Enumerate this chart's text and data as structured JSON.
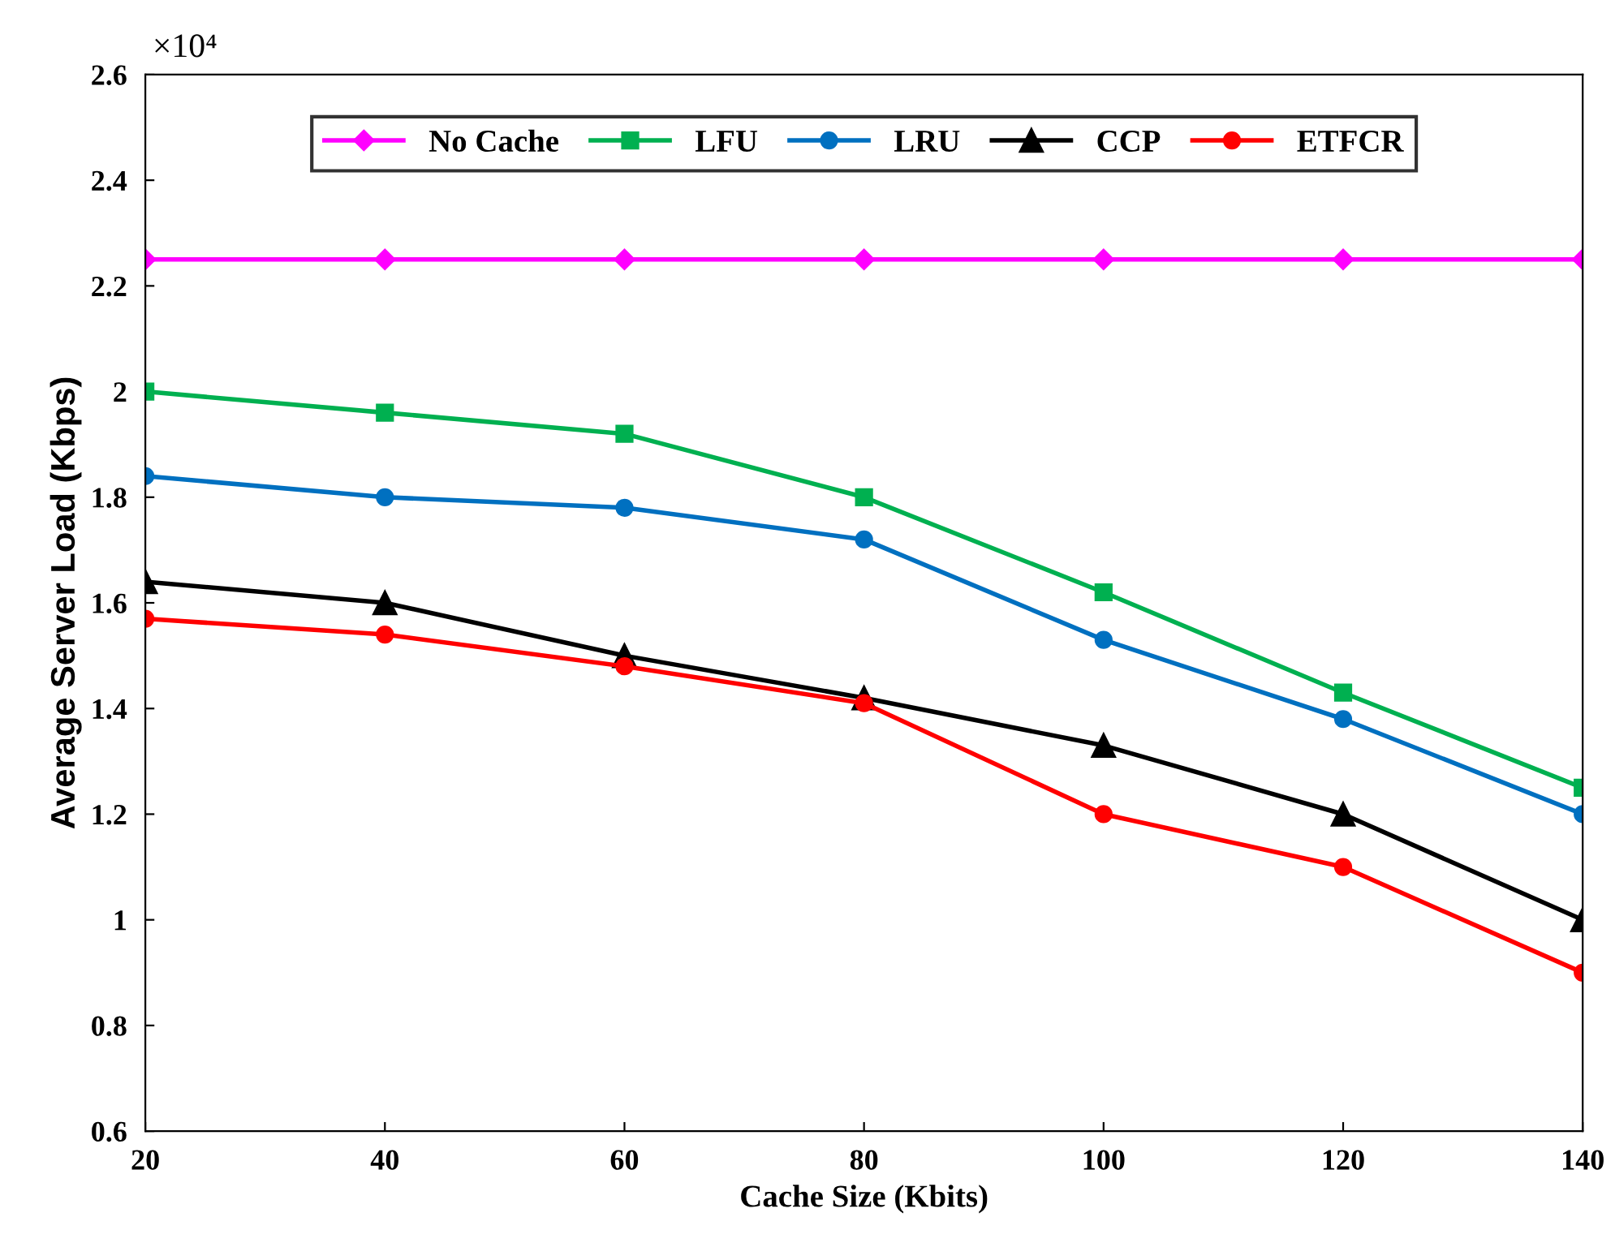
{
  "chart_data": {
    "type": "line",
    "xlabel": "Cache Size (Kbits)",
    "ylabel": "Average Server Load (Kbps)",
    "annotations": [
      "×10⁴"
    ],
    "x": [
      20,
      40,
      60,
      80,
      100,
      120,
      140
    ],
    "xlim": [
      20,
      140
    ],
    "xticks": [
      20,
      40,
      60,
      80,
      100,
      120,
      140
    ],
    "ylim": [
      0.6,
      2.6
    ],
    "yticks": [
      0.6,
      0.8,
      1,
      1.2,
      1.4,
      1.6,
      1.8,
      2,
      2.2,
      2.4,
      2.6
    ],
    "grid": false,
    "legend": "top",
    "line_style": "solid",
    "series": [
      {
        "name": "No Cache",
        "color": "#ff00ff",
        "marker": "diamond",
        "values": [
          2.25,
          2.25,
          2.25,
          2.25,
          2.25,
          2.25,
          2.25
        ]
      },
      {
        "name": "LFU",
        "color": "#00b050",
        "marker": "square",
        "values": [
          2.0,
          1.96,
          1.92,
          1.8,
          1.62,
          1.43,
          1.25
        ]
      },
      {
        "name": "LRU",
        "color": "#0070c0",
        "marker": "circle",
        "values": [
          1.84,
          1.8,
          1.78,
          1.72,
          1.53,
          1.38,
          1.2
        ]
      },
      {
        "name": "CCP",
        "color": "#000000",
        "marker": "triangle",
        "values": [
          1.64,
          1.6,
          1.5,
          1.42,
          1.33,
          1.2,
          1.0
        ]
      },
      {
        "name": "ETFCR",
        "color": "#ff0000",
        "marker": "circle",
        "values": [
          1.57,
          1.54,
          1.48,
          1.41,
          1.2,
          1.1,
          0.9
        ]
      }
    ]
  }
}
